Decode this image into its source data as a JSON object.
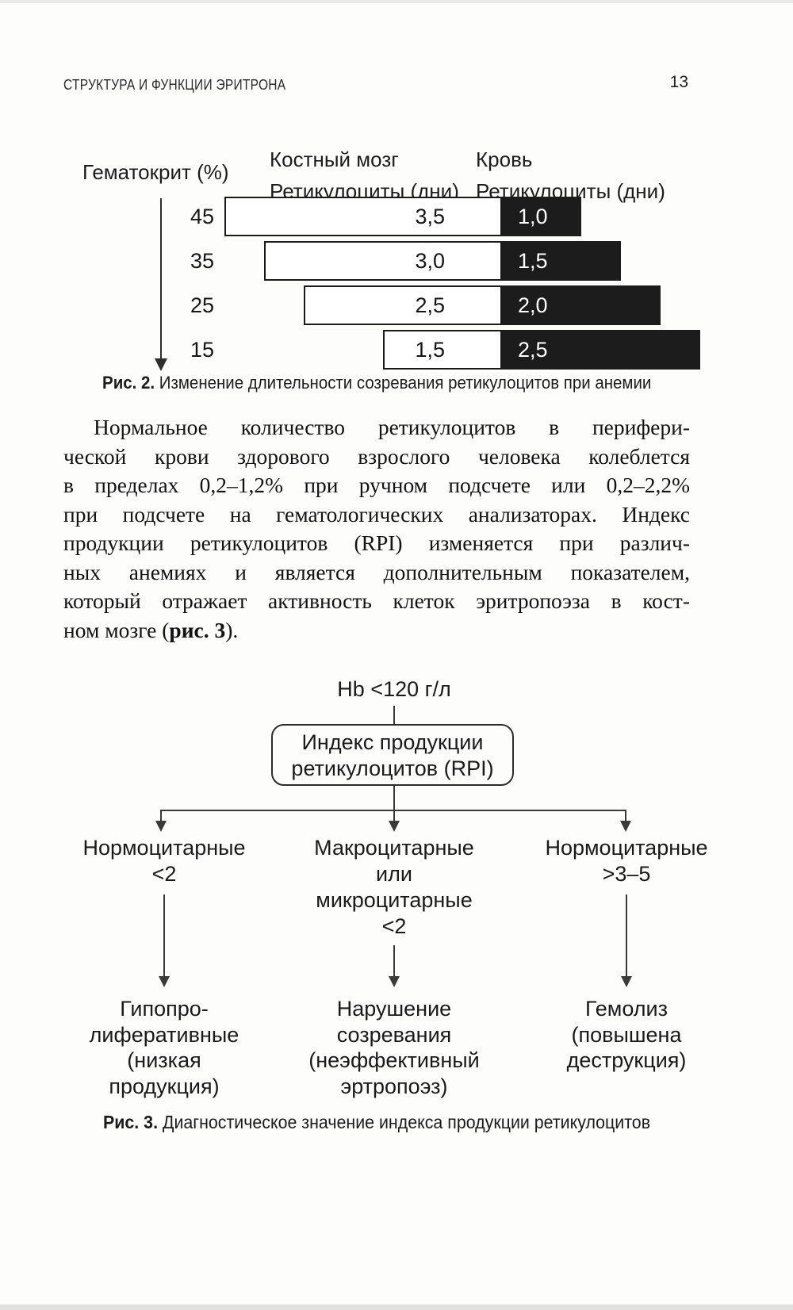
{
  "page": {
    "header_title": "СТРУКТУРА И ФУНКЦИИ ЭРИТРОНА",
    "page_number": "13"
  },
  "figure2": {
    "axis_label": "Гематокрит (%)",
    "col1_header_line1": "Костный мозг",
    "col1_header_line2": "Ретикулоциты (дни)",
    "col2_header_line1": "Кровь",
    "col2_header_line2": "Ретикулоциты (дни)",
    "caption_label": "Рис. 2.",
    "caption_text": " Изменение длительности созревания ретикулоцитов при анемии"
  },
  "chart_data": {
    "type": "bar",
    "orientation": "horizontal-stacked",
    "category_axis_label": "Гематокрит (%)",
    "categories": [
      "45",
      "35",
      "25",
      "15"
    ],
    "series": [
      {
        "name": "Костный мозг — Ретикулоциты (дни)",
        "style": "white",
        "values": [
          3.5,
          3.0,
          2.5,
          1.5
        ]
      },
      {
        "name": "Кровь — Ретикулоциты (дни)",
        "style": "black",
        "values": [
          1.0,
          1.5,
          2.0,
          2.5
        ]
      }
    ],
    "value_format": "decimal-comma",
    "title": "Рис. 2. Изменение длительности созревания ретикулоцитов при анемии",
    "legend_position": "column-headers-top",
    "grid": false
  },
  "paragraph": {
    "lines": [
      "Нормальное количество ретикулоцитов в перифери-",
      "ческой крови здорового взрослого человека колеблется",
      "в пределах 0,2–1,2% при ручном подсчете или 0,2–2,2%",
      "при подсчете на гематологических анализаторах. Индекс",
      "продукции ретикулоцитов (RPI) изменяется при различ-",
      "ных анемиях и является дополнительным показателем,",
      "который отражает активность клеток эритропоэза в кост-"
    ],
    "last_line_prefix": "ном мозге (",
    "last_line_bold": "рис. 3",
    "last_line_suffix": ")."
  },
  "figure3": {
    "root_label": "Hb <120 г/л",
    "box_line1": "Индекс продукции",
    "box_line2": "ретикулоцитов (RPI)",
    "branches": [
      {
        "top_lines": [
          "Нормоцитарные",
          "<2"
        ],
        "bottom_lines": [
          "Гипопро-",
          "лиферативные",
          "(низкая",
          "продукция)"
        ]
      },
      {
        "top_lines": [
          "Макроцитарные",
          "или",
          "микроцитарные",
          "<2"
        ],
        "bottom_lines": [
          "Нарушение",
          "созревания",
          "(неэффективный",
          "эртропоэз)"
        ]
      },
      {
        "top_lines": [
          "Нормоцитарные",
          ">3–5"
        ],
        "bottom_lines": [
          "Гемолиз",
          "(повышена",
          "деструкция)"
        ]
      }
    ],
    "caption_label": "Рис. 3.",
    "caption_text": " Диагностическое значение индекса продукции ретикулоцитов"
  }
}
